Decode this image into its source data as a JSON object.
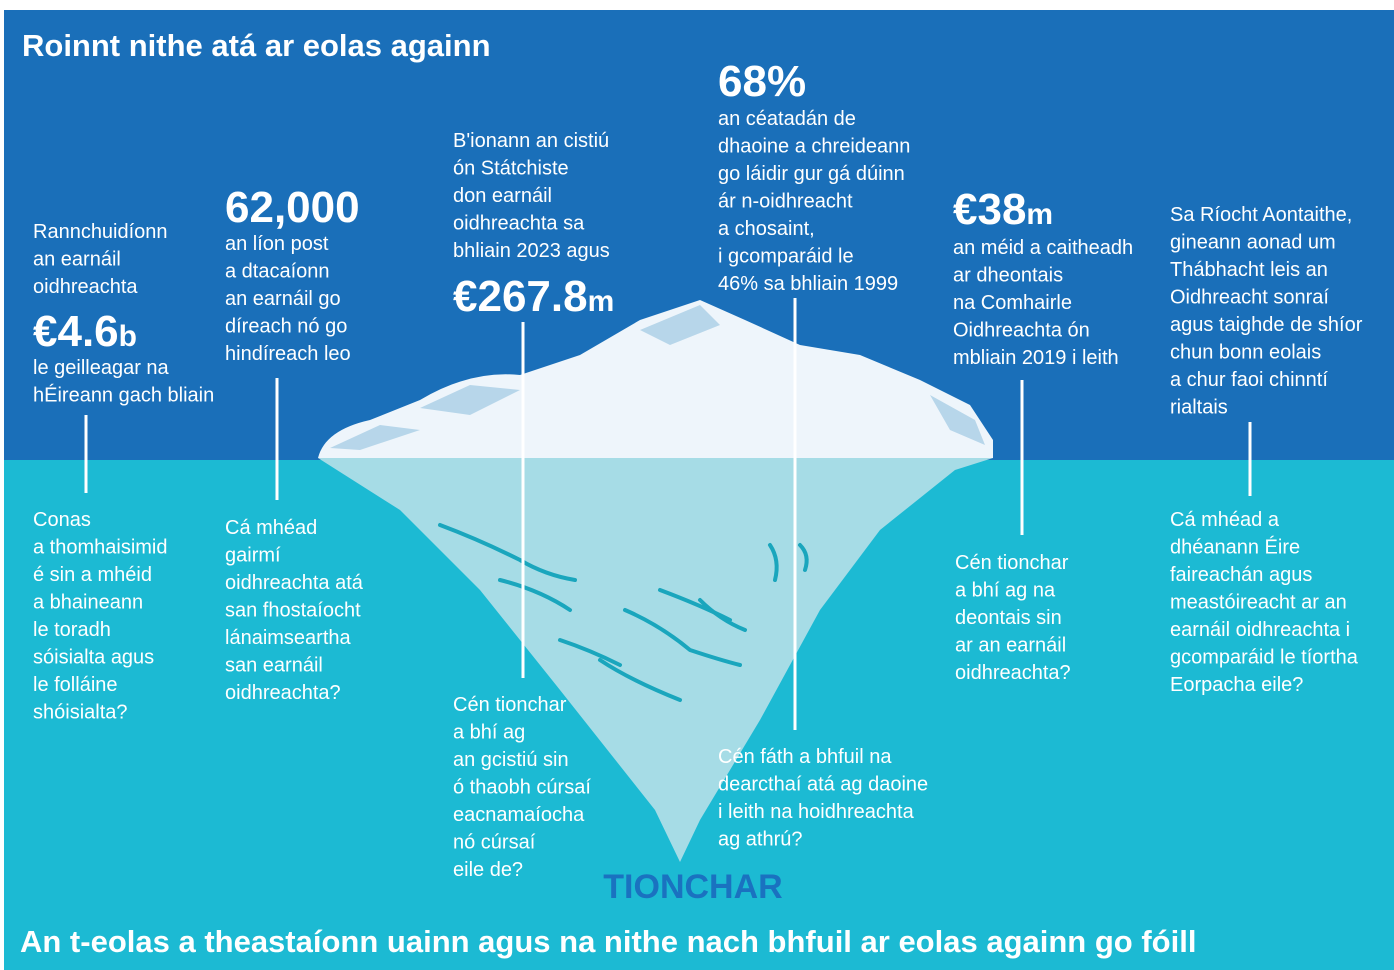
{
  "header": {
    "title": "Roinnt nithe atá ar eolas againn"
  },
  "footer": {
    "title": "An t-eolas a theastaíonn uainn agus na nithe nach bhfuil ar eolas againn go fóill"
  },
  "impact_label": "TIONCHAR",
  "known": [
    {
      "intro": [
        "Rannchuidíonn",
        "an earnáil",
        "oidhreachta"
      ],
      "figure": "€4.6",
      "unit": "b",
      "outro": [
        "le geilleagar na",
        "hÉireann gach bliain"
      ]
    },
    {
      "figure": "62,000",
      "outro": [
        "an líon post",
        "a dtacaíonn",
        "an earnáil go",
        "díreach nó go",
        "hindíreach leo"
      ]
    },
    {
      "intro": [
        "B'ionann an cistiú",
        "ón Státchiste",
        "don earnáil",
        "oidhreachta sa",
        "bhliain 2023 agus"
      ],
      "figure": "€267.8",
      "unit": "m"
    },
    {
      "figure": "68%",
      "outro": [
        "an céatadán de",
        "dhaoine a chreideann",
        "go láidir gur gá dúinn",
        "ár n-oidhreacht",
        "a chosaint,",
        "i gcomparáid le",
        "46% sa bhliain 1999"
      ]
    },
    {
      "figure": "€38",
      "unit": "m",
      "outro": [
        "an méid a caitheadh",
        "ar dheontais",
        "na Comhairle",
        "Oidhreachta ón",
        "mbliain 2019 i leith"
      ]
    },
    {
      "intro": [
        "Sa Ríocht Aontaithe,",
        "gineann aonad um",
        "Thábhacht leis an",
        "Oidhreacht sonraí",
        "agus taighde de shíor",
        "chun bonn eolais",
        "a chur faoi chinntí",
        "rialtais"
      ]
    }
  ],
  "unknown": [
    [
      "Conas",
      "a thomhaisimid",
      "é sin a mhéid",
      "a bhaineann",
      "le toradh",
      "sóisialta agus",
      "le folláine",
      "shóisialta?"
    ],
    [
      "Cá mhéad",
      "gairmí",
      "oidhreachta atá",
      "san fhostaíocht",
      "lánaimseartha",
      "san earnáil",
      "oidhreachta?"
    ],
    [
      "Cén tionchar",
      "a bhí ag",
      "an gcistiú sin",
      "ó thaobh cúrsaí",
      "eacnamaíocha",
      "nó cúrsaí",
      "eile de?"
    ],
    [
      "Cén fáth a bhfuil na",
      "dearcthaí atá ag daoine",
      "i leith na hoidhreachta",
      "ag athrú?"
    ],
    [
      "Cén tionchar",
      "a bhí ag na",
      "deontais sin",
      "ar an earnáil",
      "oidhreachta?"
    ],
    [
      "Cá mhéad a",
      "dhéanann Éire",
      "faireachán agus",
      "meastóireacht ar an",
      "earnáil oidhreachta i",
      "gcomparáid le tíortha",
      "Eorpacha eile?"
    ]
  ]
}
